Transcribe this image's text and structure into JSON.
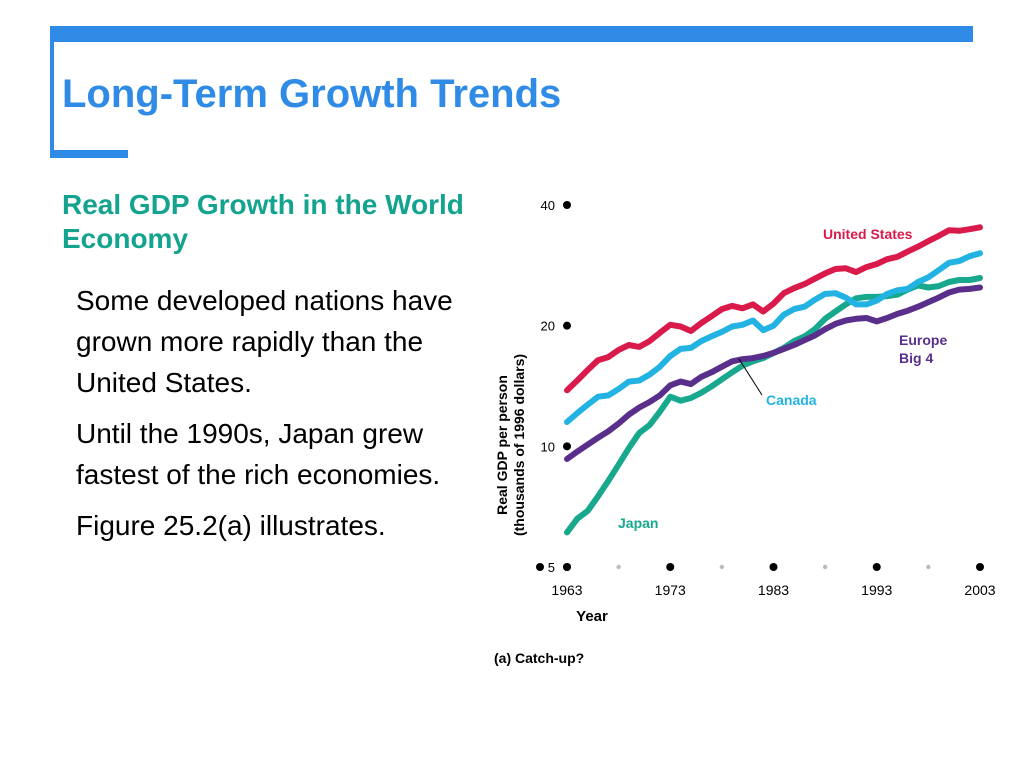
{
  "slide": {
    "title": "Long-Term Growth Trends",
    "subtitle": "Real GDP Growth in the World Economy",
    "bullets": [
      "Some developed nations have grown more rapidly than the United States.",
      "Until the 1990s, Japan grew fastest of the rich economies.",
      "Figure 25.2(a) illustrates."
    ]
  },
  "chart_data": {
    "type": "line",
    "caption": "(a) Catch-up?",
    "xlabel": "Year",
    "ylabel_line1": "Real GDP per person",
    "ylabel_line2": "(thousands of 1996 dollars)",
    "yscale": "log",
    "ylim": [
      5,
      40
    ],
    "xlim": [
      1963,
      2003
    ],
    "y_ticks": [
      5,
      10,
      20,
      40
    ],
    "x_ticks": [
      1963,
      1973,
      1983,
      1993,
      2003
    ],
    "x": [
      1963,
      1964,
      1965,
      1966,
      1967,
      1968,
      1969,
      1970,
      1971,
      1972,
      1973,
      1974,
      1975,
      1976,
      1977,
      1978,
      1979,
      1980,
      1981,
      1982,
      1983,
      1984,
      1985,
      1986,
      1987,
      1988,
      1989,
      1990,
      1991,
      1992,
      1993,
      1994,
      1995,
      1996,
      1997,
      1998,
      1999,
      2000,
      2001,
      2002,
      2003
    ],
    "series": [
      {
        "name": "United States",
        "color": "#d91a4a",
        "label_color": "#d91a4a",
        "values": [
          13.8,
          14.6,
          15.5,
          16.4,
          16.7,
          17.4,
          17.9,
          17.7,
          18.3,
          19.2,
          20.1,
          19.9,
          19.4,
          20.3,
          21.1,
          22.0,
          22.4,
          22.1,
          22.6,
          21.7,
          22.7,
          24.1,
          24.8,
          25.4,
          26.2,
          27.0,
          27.7,
          27.8,
          27.2,
          28.0,
          28.5,
          29.3,
          29.7,
          30.6,
          31.5,
          32.5,
          33.5,
          34.6,
          34.5,
          34.8,
          35.2
        ]
      },
      {
        "name": "Canada",
        "color": "#22b3e3",
        "label_color": "#22b3e3",
        "values": [
          11.5,
          12.1,
          12.7,
          13.3,
          13.4,
          13.9,
          14.5,
          14.6,
          15.1,
          15.8,
          16.8,
          17.5,
          17.6,
          18.3,
          18.8,
          19.3,
          19.9,
          20.1,
          20.6,
          19.5,
          20.0,
          21.3,
          22.0,
          22.3,
          23.2,
          24.0,
          24.1,
          23.5,
          22.6,
          22.6,
          23.1,
          24.0,
          24.5,
          24.7,
          25.7,
          26.4,
          27.5,
          28.7,
          29.0,
          29.8,
          30.3
        ]
      },
      {
        "name": "Europe Big 4",
        "color": "#5a2f8c",
        "label_color": "#5a2f8c",
        "values": [
          9.3,
          9.7,
          10.1,
          10.5,
          10.9,
          11.4,
          12.0,
          12.5,
          12.9,
          13.4,
          14.2,
          14.5,
          14.3,
          14.9,
          15.3,
          15.8,
          16.3,
          16.5,
          16.6,
          16.8,
          17.1,
          17.5,
          17.9,
          18.4,
          18.9,
          19.6,
          20.2,
          20.6,
          20.8,
          20.9,
          20.5,
          20.9,
          21.4,
          21.8,
          22.3,
          22.9,
          23.5,
          24.2,
          24.6,
          24.7,
          24.9
        ]
      },
      {
        "name": "Japan",
        "color": "#17a88e",
        "label_color": "#17a88e",
        "values": [
          6.1,
          6.6,
          6.9,
          7.5,
          8.2,
          9.0,
          9.9,
          10.8,
          11.3,
          12.2,
          13.3,
          13.0,
          13.2,
          13.6,
          14.1,
          14.7,
          15.3,
          15.9,
          16.3,
          16.6,
          17.1,
          17.6,
          18.3,
          18.8,
          19.6,
          20.8,
          21.7,
          22.6,
          23.4,
          23.6,
          23.6,
          23.7,
          23.9,
          24.6,
          25.2,
          24.9,
          25.1,
          25.7,
          26.0,
          26.0,
          26.3
        ]
      }
    ]
  }
}
